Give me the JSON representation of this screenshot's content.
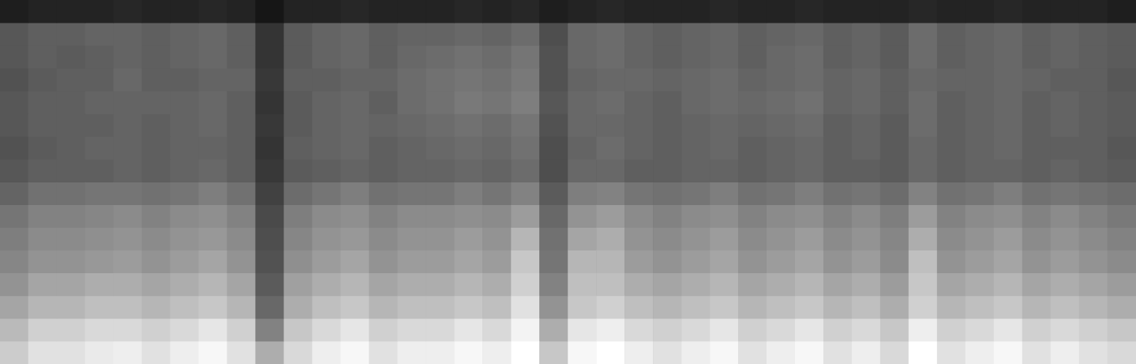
{
  "chart_data": {
    "type": "heatmap",
    "tick_labels": false,
    "grid": false,
    "color": "#ffffff",
    "cells": [
      [
        7,
        8,
        8,
        8,
        9,
        8,
        8,
        9,
        8,
        5,
        8,
        8,
        9,
        8,
        8,
        8,
        9,
        8,
        9,
        7,
        8,
        9,
        8,
        8,
        8,
        9,
        8,
        8,
        9,
        8,
        8,
        8,
        9,
        8,
        8,
        9,
        8,
        8,
        8,
        7
      ],
      [
        20,
        22,
        22,
        23,
        23,
        22,
        23,
        24,
        22,
        12,
        21,
        23,
        24,
        22,
        23,
        23,
        24,
        23,
        25,
        18,
        24,
        25,
        23,
        22,
        23,
        24,
        22,
        23,
        24,
        22,
        23,
        21,
        25,
        22,
        23,
        24,
        22,
        23,
        22,
        21
      ],
      [
        20,
        22,
        21,
        22,
        23,
        22,
        23,
        24,
        22,
        12,
        21,
        23,
        24,
        22,
        24,
        25,
        26,
        25,
        27,
        19,
        24,
        25,
        23,
        22,
        23,
        24,
        22,
        24,
        25,
        22,
        23,
        21,
        25,
        22,
        23,
        24,
        22,
        23,
        22,
        21
      ],
      [
        19,
        21,
        22,
        22,
        24,
        22,
        22,
        23,
        23,
        13,
        22,
        22,
        23,
        23,
        25,
        26,
        27,
        26,
        28,
        19,
        23,
        24,
        24,
        23,
        24,
        25,
        23,
        24,
        25,
        23,
        24,
        22,
        24,
        23,
        23,
        24,
        23,
        22,
        22,
        20
      ],
      [
        20,
        22,
        22,
        23,
        23,
        23,
        23,
        24,
        22,
        12,
        21,
        23,
        24,
        22,
        25,
        26,
        28,
        27,
        29,
        20,
        24,
        25,
        23,
        22,
        24,
        25,
        24,
        25,
        26,
        23,
        24,
        22,
        25,
        22,
        23,
        24,
        22,
        23,
        22,
        21
      ],
      [
        20,
        22,
        22,
        22,
        23,
        22,
        23,
        24,
        22,
        13,
        21,
        23,
        24,
        23,
        24,
        25,
        26,
        25,
        27,
        19,
        24,
        24,
        23,
        22,
        23,
        24,
        23,
        24,
        25,
        22,
        23,
        21,
        25,
        22,
        23,
        24,
        22,
        23,
        22,
        21
      ],
      [
        19,
        21,
        22,
        23,
        23,
        22,
        23,
        23,
        22,
        12,
        22,
        23,
        24,
        22,
        23,
        24,
        25,
        24,
        26,
        18,
        23,
        25,
        23,
        22,
        23,
        24,
        22,
        23,
        24,
        22,
        23,
        21,
        24,
        22,
        23,
        24,
        22,
        22,
        22,
        20
      ],
      [
        20,
        22,
        22,
        22,
        23,
        22,
        23,
        24,
        22,
        13,
        21,
        22,
        23,
        22,
        23,
        23,
        24,
        23,
        25,
        18,
        24,
        24,
        22,
        22,
        23,
        23,
        22,
        23,
        24,
        22,
        22,
        21,
        24,
        22,
        23,
        23,
        22,
        23,
        22,
        21
      ],
      [
        23,
        26,
        26,
        27,
        27,
        26,
        27,
        29,
        26,
        15,
        25,
        27,
        29,
        26,
        27,
        27,
        29,
        27,
        30,
        21,
        29,
        30,
        27,
        26,
        27,
        29,
        26,
        27,
        29,
        26,
        27,
        25,
        30,
        26,
        27,
        29,
        26,
        27,
        26,
        25
      ],
      [
        27,
        30,
        30,
        31,
        32,
        30,
        32,
        33,
        30,
        17,
        29,
        32,
        33,
        30,
        32,
        32,
        33,
        32,
        36,
        24,
        34,
        36,
        32,
        30,
        32,
        33,
        30,
        32,
        33,
        30,
        32,
        29,
        36,
        30,
        32,
        33,
        30,
        32,
        30,
        28
      ],
      [
        29,
        32,
        32,
        33,
        34,
        32,
        34,
        35,
        32,
        18,
        31,
        34,
        35,
        32,
        34,
        34,
        36,
        34,
        42,
        26,
        38,
        40,
        34,
        32,
        34,
        36,
        32,
        34,
        36,
        32,
        34,
        31,
        40,
        32,
        34,
        36,
        32,
        34,
        32,
        30
      ],
      [
        31,
        34,
        34,
        35,
        36,
        34,
        36,
        38,
        34,
        19,
        33,
        36,
        38,
        34,
        36,
        36,
        38,
        36,
        46,
        27,
        42,
        42,
        36,
        34,
        36,
        38,
        34,
        36,
        38,
        34,
        36,
        32,
        44,
        34,
        36,
        38,
        34,
        36,
        34,
        32
      ],
      [
        34,
        38,
        38,
        40,
        40,
        38,
        40,
        42,
        38,
        21,
        37,
        40,
        42,
        38,
        40,
        40,
        42,
        40,
        48,
        30,
        44,
        44,
        40,
        38,
        40,
        42,
        38,
        40,
        42,
        38,
        40,
        36,
        46,
        38,
        40,
        42,
        38,
        40,
        38,
        36
      ],
      [
        38,
        42,
        42,
        44,
        44,
        42,
        44,
        46,
        42,
        24,
        40,
        44,
        46,
        42,
        44,
        44,
        46,
        44,
        52,
        34,
        46,
        48,
        44,
        42,
        44,
        46,
        42,
        44,
        46,
        42,
        44,
        40,
        48,
        42,
        44,
        46,
        42,
        44,
        42,
        40
      ],
      [
        43,
        48,
        48,
        50,
        50,
        48,
        50,
        53,
        48,
        30,
        46,
        50,
        53,
        48,
        50,
        50,
        53,
        50,
        56,
        40,
        53,
        55,
        50,
        48,
        50,
        53,
        48,
        50,
        53,
        48,
        50,
        46,
        55,
        48,
        50,
        53,
        48,
        50,
        48,
        46
      ],
      [
        47,
        52,
        52,
        54,
        55,
        52,
        55,
        57,
        52,
        40,
        50,
        55,
        57,
        52,
        55,
        55,
        57,
        55,
        60,
        46,
        57,
        60,
        55,
        52,
        55,
        57,
        52,
        55,
        57,
        52,
        55,
        50,
        60,
        52,
        55,
        57,
        52,
        55,
        52,
        50
      ]
    ]
  }
}
